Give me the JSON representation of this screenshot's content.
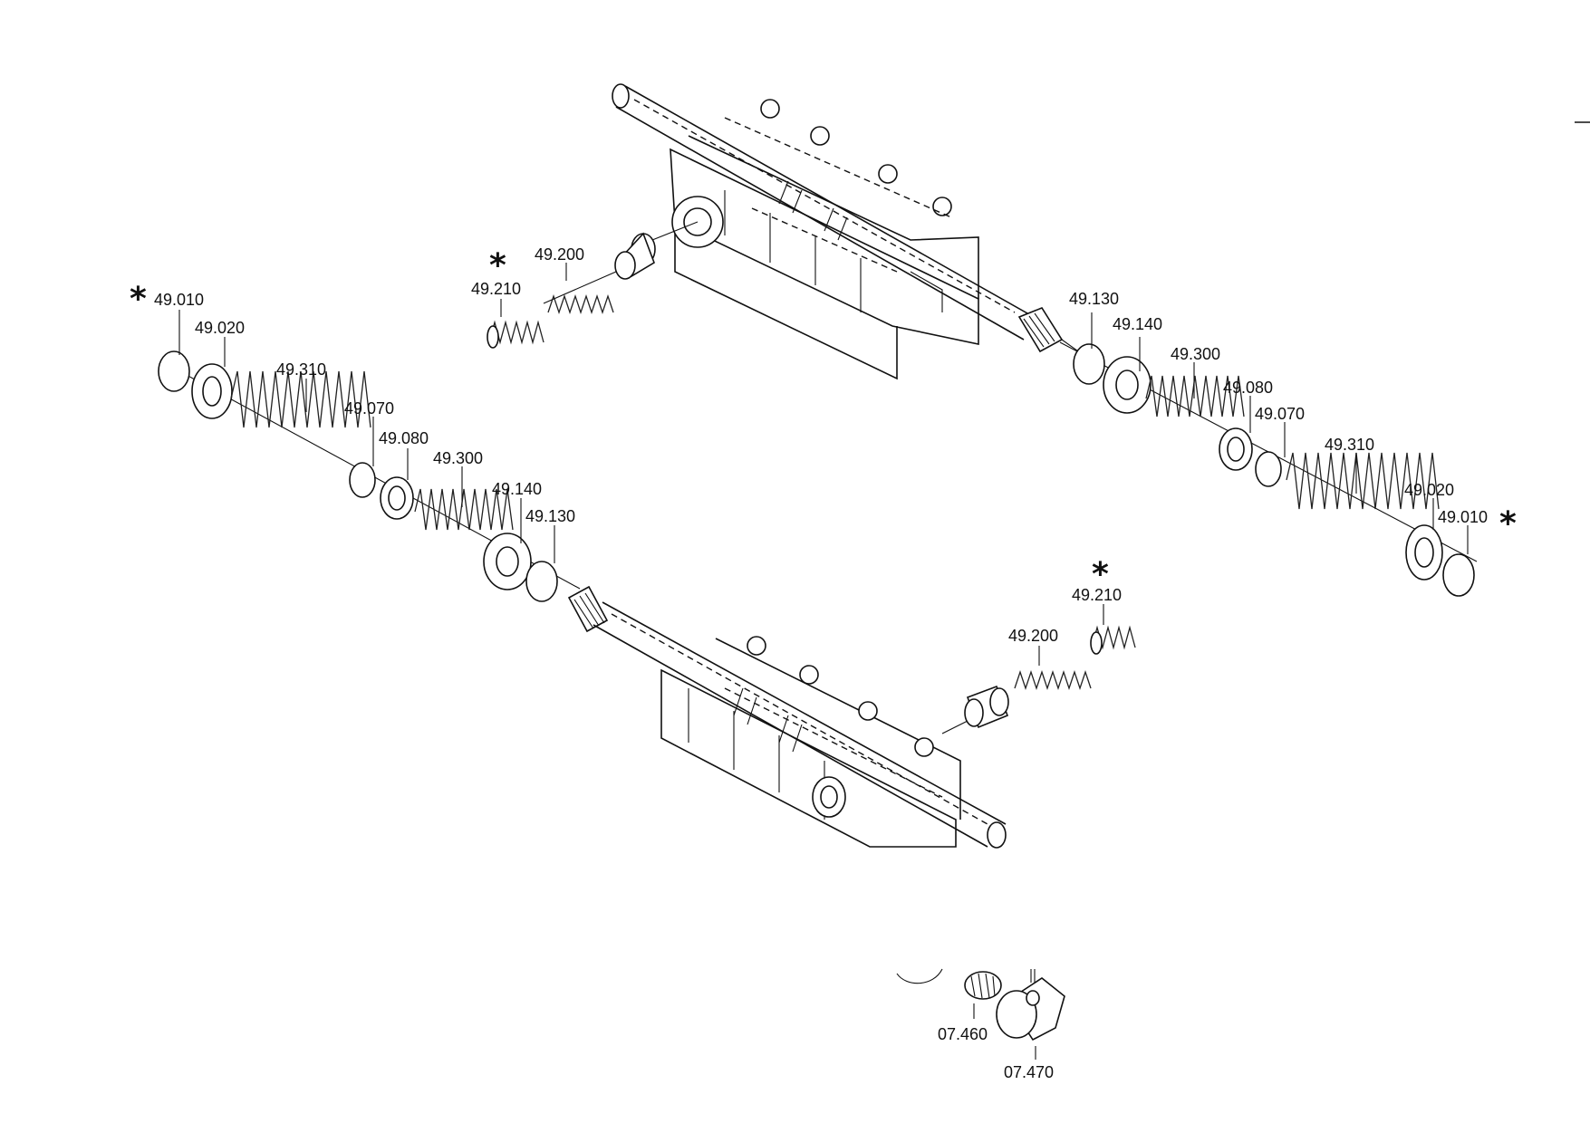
{
  "diagram": {
    "title": "Exploded parts diagram — shift rails, springs, washers and retaining rings",
    "labels": {
      "top_49210": "49.210",
      "top_49200": "49.200",
      "top_49130": "49.130",
      "top_49140": "49.140",
      "top_49300": "49.300",
      "top_49080": "49.080",
      "top_49070": "49.070",
      "top_49310": "49.310",
      "top_49020": "49.020",
      "top_49010": "49.010",
      "left_49010": "49.010",
      "left_49020": "49.020",
      "left_49310": "49.310",
      "left_49070": "49.070",
      "left_49080": "49.080",
      "left_49300": "49.300",
      "left_49140": "49.140",
      "left_49130": "49.130",
      "bot_49210": "49.210",
      "bot_49200": "49.200",
      "p_07460": "07.460",
      "p_07470": "07.470"
    },
    "marker": "*"
  }
}
